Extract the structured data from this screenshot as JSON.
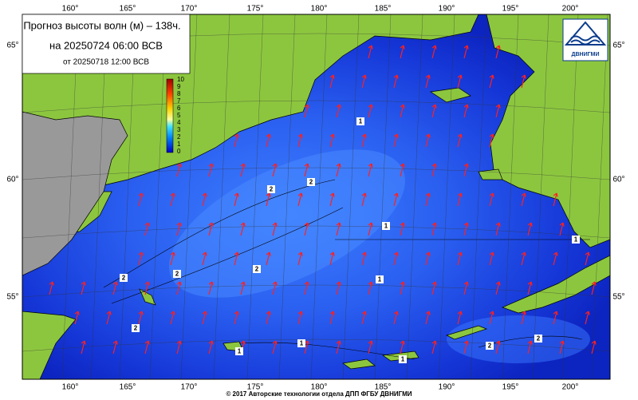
{
  "header": {
    "title": "Прогноз высоты волн (м) – 138ч.",
    "forecast_time": "на 20250724 06:00 ВСВ",
    "issued": "от 20250718 12:00 ВСВ"
  },
  "logo": {
    "text": "ДВНИГМИ"
  },
  "longitude_labels": [
    "160°",
    "165°",
    "170°",
    "175°",
    "180°",
    "185°",
    "190°",
    "195°",
    "200°"
  ],
  "latitude_labels": [
    "65°",
    "60°",
    "55°"
  ],
  "colorbar": {
    "labels": [
      "10",
      "9",
      "8",
      "7",
      "6",
      "5",
      "4",
      "3",
      "2",
      "1",
      "0"
    ]
  },
  "contour_labels": [
    1,
    1,
    1,
    1,
    1,
    1,
    1,
    2,
    2,
    2,
    2,
    2,
    2,
    2,
    2
  ],
  "footer": "© 2017 Авторские технологии отдела ДПП ФГБУ ДВНИГМИ"
}
